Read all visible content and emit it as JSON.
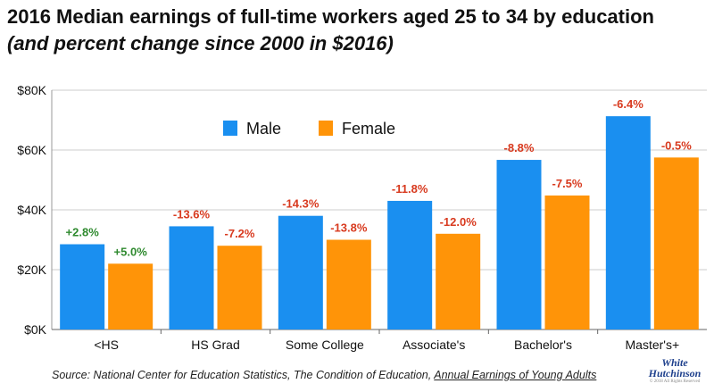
{
  "header": {
    "title": "2016 Median earnings of full-time workers aged 25 to 34 by education",
    "subtitle": "(and percent change since 2000 in $2016)"
  },
  "footer": {
    "source_prefix": "Source: National Center for Education Statistics, The Condition of Education, ",
    "source_link": "Annual Earnings of Young Adults"
  },
  "logo": {
    "line1": "White",
    "line2": "Hutchinson",
    "line3": "© 2018 All Rights Reserved"
  },
  "colors": {
    "male": "#1a8ff0",
    "female": "#ff9408",
    "positive": "#2f8a2f",
    "negative": "#d83a1f",
    "grid": "#cccccc"
  },
  "chart_data": {
    "type": "bar",
    "categories": [
      "<HS",
      "HS Grad",
      "Some College",
      "Associate's",
      "Bachelor's",
      "Master's+"
    ],
    "series": [
      {
        "name": "Male",
        "values": [
          28500,
          34500,
          38000,
          43000,
          56700,
          71300
        ],
        "labels": [
          "+2.8%",
          "-13.6%",
          "-14.3%",
          "-11.8%",
          "-8.8%",
          "-6.4%"
        ]
      },
      {
        "name": "Female",
        "values": [
          22000,
          28000,
          30000,
          32000,
          44800,
          57500
        ],
        "labels": [
          "+5.0%",
          "-7.2%",
          "-13.8%",
          "-12.0%",
          "-7.5%",
          "-0.5%"
        ]
      }
    ],
    "ylim": [
      0,
      80000
    ],
    "yticks": [
      0,
      20000,
      40000,
      60000,
      80000
    ],
    "ytick_labels": [
      "$0K",
      "$20K",
      "$40K",
      "$60K",
      "$80K"
    ],
    "grid": "horizontal",
    "legend_position": "top-left inside plot"
  }
}
